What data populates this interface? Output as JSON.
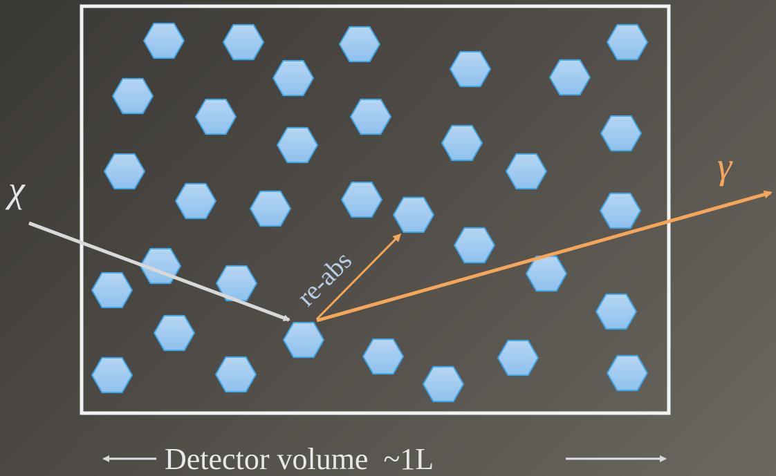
{
  "labels": {
    "incoming_particle": "χ",
    "outgoing_photon": "γ",
    "reabsorption": "re-abs",
    "caption": "Detector volume  ~1L"
  },
  "colors": {
    "hexagon_fill_top": "#b6d5f2",
    "hexagon_fill_bottom": "#8fc1ee",
    "hexagon_stroke": "#3fa6e8",
    "incoming_path": "#d9d9d9",
    "photon_path": "#f5a65b",
    "detector_border": "#f2f2f2"
  },
  "icons": {
    "hexagon": "hexagon-molecule-icon",
    "arrow": "arrow-head-icon"
  }
}
